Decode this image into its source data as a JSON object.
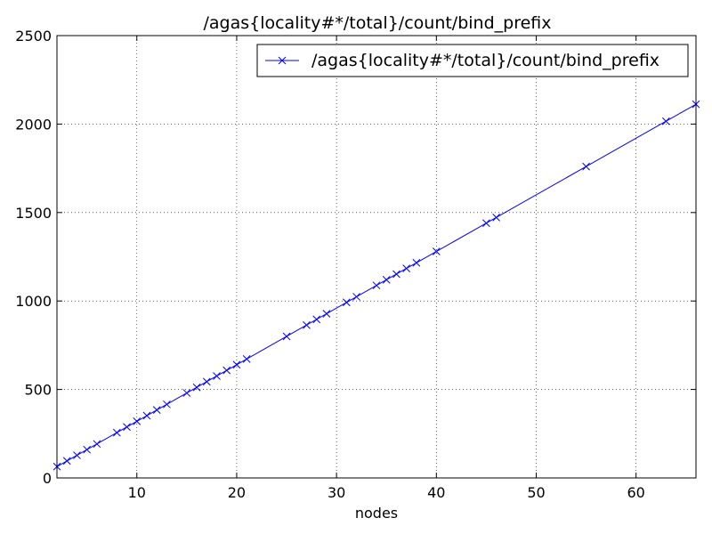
{
  "chart_data": {
    "type": "line",
    "title": "/agas{locality#*/total}/count/bind_prefix",
    "xlabel": "nodes",
    "ylabel": "",
    "xlim": [
      2,
      66
    ],
    "ylim": [
      0,
      2500
    ],
    "xticks": [
      10,
      20,
      30,
      40,
      50,
      60
    ],
    "yticks": [
      0,
      500,
      1000,
      1500,
      2000,
      2500
    ],
    "grid": true,
    "legend_position": "top-right",
    "series": [
      {
        "name": "/agas{locality#*/total}/count/bind_prefix",
        "color": "#0000ff",
        "marker": "x",
        "x": [
          2,
          3,
          4,
          5,
          6,
          8,
          9,
          10,
          11,
          12,
          13,
          15,
          16,
          17,
          18,
          19,
          20,
          21,
          25,
          27,
          28,
          29,
          31,
          32,
          34,
          35,
          36,
          37,
          38,
          40,
          45,
          46,
          55,
          63,
          66
        ],
        "y": [
          64,
          96,
          128,
          160,
          192,
          256,
          288,
          320,
          352,
          384,
          416,
          480,
          512,
          544,
          576,
          608,
          640,
          672,
          800,
          864,
          896,
          928,
          992,
          1024,
          1088,
          1120,
          1152,
          1184,
          1216,
          1280,
          1440,
          1472,
          1760,
          2016,
          2112
        ]
      }
    ]
  }
}
